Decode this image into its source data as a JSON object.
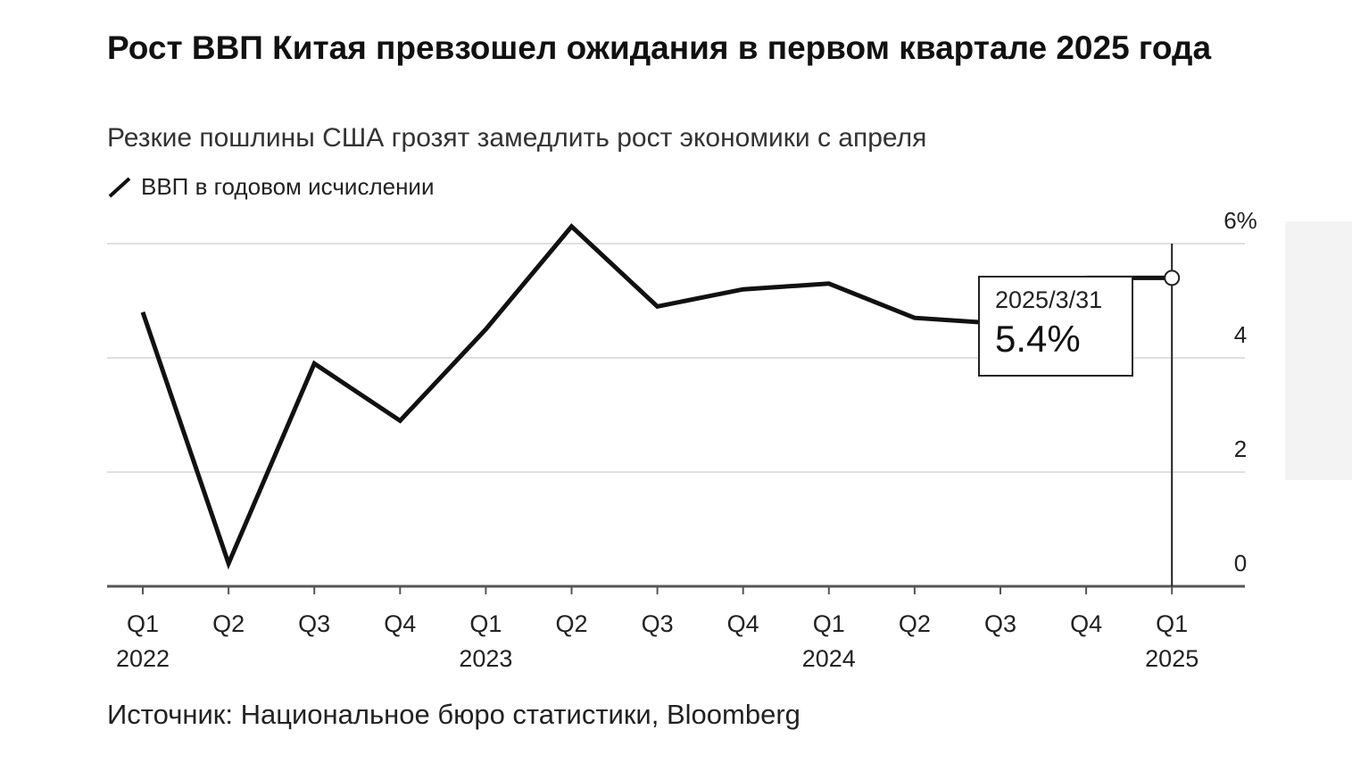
{
  "title": "Рост ВВП Китая превзошел ожидания в первом квартале 2025 года",
  "subtitle": "Резкие пошлины США грозят замедлить рост экономики с апреля",
  "source": "Источник: Национальное бюро статистики, Bloomberg",
  "colors": {
    "line": "#111111",
    "grid": "#e0e0e0",
    "axis": "#555555"
  },
  "chart_data": {
    "type": "line",
    "title": "Рост ВВП Китая превзошел ожидания в первом квартале 2025 года",
    "legend": {
      "label": "ВВП в годовом исчислении",
      "placement": "top-left"
    },
    "categories": [
      "Q1 2022",
      "Q2 2022",
      "Q3 2022",
      "Q4 2022",
      "Q1 2023",
      "Q2 2023",
      "Q3 2023",
      "Q4 2023",
      "Q1 2024",
      "Q2 2024",
      "Q3 2024",
      "Q4 2024",
      "Q1 2025"
    ],
    "x_ticks": [
      {
        "q": "Q1",
        "y": "2022"
      },
      {
        "q": "Q2",
        "y": ""
      },
      {
        "q": "Q3",
        "y": ""
      },
      {
        "q": "Q4",
        "y": ""
      },
      {
        "q": "Q1",
        "y": "2023"
      },
      {
        "q": "Q2",
        "y": ""
      },
      {
        "q": "Q3",
        "y": ""
      },
      {
        "q": "Q4",
        "y": ""
      },
      {
        "q": "Q1",
        "y": "2024"
      },
      {
        "q": "Q2",
        "y": ""
      },
      {
        "q": "Q3",
        "y": ""
      },
      {
        "q": "Q4",
        "y": ""
      },
      {
        "q": "Q1",
        "y": "2025"
      }
    ],
    "series": [
      {
        "name": "ВВП в годовом исчислении",
        "values": [
          4.8,
          0.4,
          3.9,
          2.9,
          4.5,
          6.3,
          4.9,
          5.2,
          5.3,
          4.7,
          4.6,
          5.4,
          5.4
        ]
      }
    ],
    "ylim": [
      0,
      6
    ],
    "y_ticks": [
      {
        "value": 0,
        "label": "0"
      },
      {
        "value": 2,
        "label": "2"
      },
      {
        "value": 4,
        "label": "4"
      },
      {
        "value": 6,
        "label": "6%"
      }
    ],
    "annotation": {
      "date": "2025/3/31",
      "value": "5.4%"
    },
    "grid": true
  }
}
